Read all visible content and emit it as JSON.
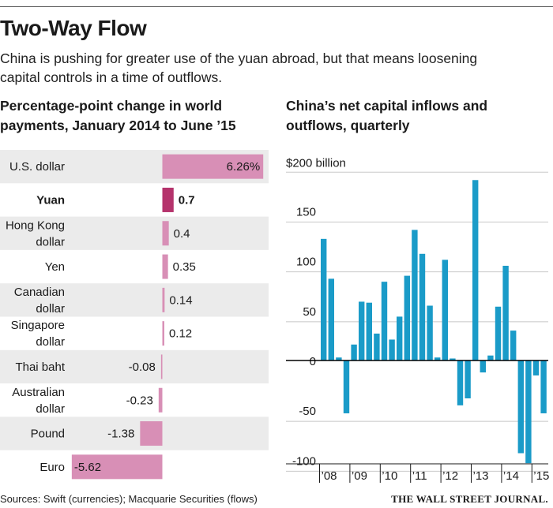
{
  "header": {
    "title": "Two-Way Flow",
    "subtitle_line1": "China is pushing for greater use of the yuan abroad, but that means loosening",
    "subtitle_line2": "capital controls in a time of outflows."
  },
  "footer": {
    "source": "Sources: Swift (currencies); Macquarie Securities (flows)",
    "publisher": "THE WALL STREET JOURNAL."
  },
  "chart_data": [
    {
      "type": "bar",
      "orientation": "horizontal",
      "title_line1": "Percentage-point change in world",
      "title_line2": "payments, January 2014 to June ’15",
      "categories": [
        "U.S. dollar",
        "Yuan",
        "Hong Kong dollar",
        "Yen",
        "Canadian dollar",
        "Singapore dollar",
        "Thai baht",
        "Australian dollar",
        "Pound",
        "Euro"
      ],
      "category_lines": [
        [
          "U.S. dollar"
        ],
        [
          "Yuan"
        ],
        [
          "Hong Kong",
          "dollar"
        ],
        [
          "Yen"
        ],
        [
          "Canadian",
          "dollar"
        ],
        [
          "Singapore",
          "dollar"
        ],
        [
          "Thai baht"
        ],
        [
          "Australian",
          "dollar"
        ],
        [
          "Pound"
        ],
        [
          "Euro"
        ]
      ],
      "values": [
        6.26,
        0.7,
        0.4,
        0.35,
        0.14,
        0.12,
        -0.08,
        -0.23,
        -1.38,
        -5.62
      ],
      "value_labels": [
        "6.26%",
        "0.7",
        "0.4",
        "0.35",
        "0.14",
        "0.12",
        "-0.08",
        "-0.23",
        "-1.38",
        "-5.62"
      ],
      "highlight": "Yuan",
      "colors": {
        "bar": "#d88fb6",
        "highlight": "#b5336c",
        "band": "#ebebeb"
      }
    },
    {
      "type": "bar",
      "title_line1": "China’s net capital inflows and",
      "title_line2": "outflows, quarterly",
      "ylabel": "$200 billion",
      "ylim": [
        -115,
        200
      ],
      "yticks": [
        150,
        100,
        50,
        0,
        -50,
        -100
      ],
      "ytick_labels": [
        "150",
        "100",
        "50",
        "0",
        "-50",
        "-100"
      ],
      "xtick_labels": [
        "’08",
        "’09",
        "’10",
        "’11",
        "’12",
        "’13",
        "’14",
        "’15"
      ],
      "quarters_per_year": 4,
      "values": [
        122,
        82,
        3,
        -53,
        16,
        59,
        58,
        27,
        79,
        21,
        44,
        85,
        131,
        107,
        55,
        3,
        101,
        2,
        -45,
        -38,
        181,
        -12,
        5,
        54,
        95,
        30,
        -93,
        -103,
        -15,
        -53
      ],
      "colors": {
        "bar": "#1a9bc8",
        "grid": "#c8c8c8",
        "zero": "#000000"
      }
    }
  ]
}
